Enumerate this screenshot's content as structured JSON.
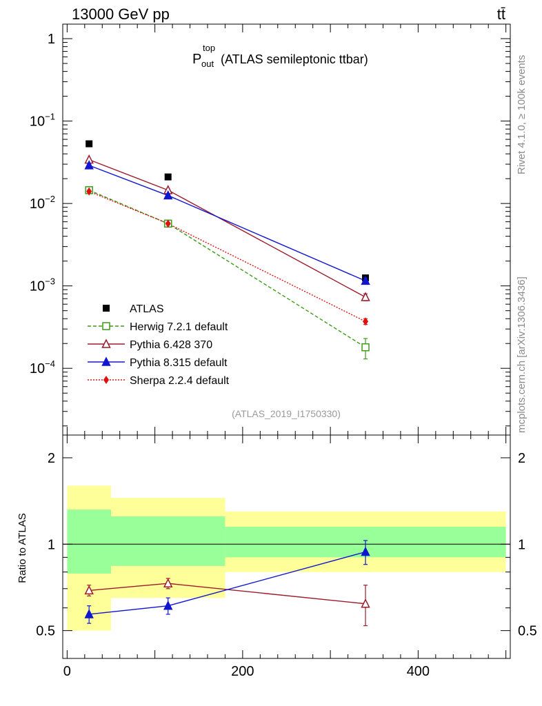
{
  "header": {
    "energy_label": "13000 GeV pp",
    "process_label": "tt̄"
  },
  "title": {
    "symbol": "P",
    "superscript": "top",
    "subscript": "out",
    "text": "(ATLAS semileptonic ttbar)"
  },
  "side_labels": {
    "rivet": "Rivet 4.1.0, ≥ 100k events",
    "mcplots": "mcplots.cern.ch [arXiv:1306.3436]"
  },
  "analysis_id": "(ATLAS_2019_I1750330)",
  "chart_data": [
    {
      "type": "scatter",
      "yscale": "log",
      "xlim": [
        -5,
        505
      ],
      "ylim": [
        1.55e-05,
        1.5
      ],
      "y_tick_labels": [
        "1",
        "10^-1",
        "10^-2",
        "10^-3",
        "10^-4"
      ],
      "legend_position": "lower-left",
      "series": [
        {
          "name": "ATLAS",
          "color": "#000000",
          "marker": "filled-square",
          "line": "none",
          "x": [
            25,
            115,
            340
          ],
          "y": [
            0.053,
            0.021,
            0.00125
          ],
          "yerr": [
            0.0015,
            0.0006,
            8e-05
          ]
        },
        {
          "name": "Herwig 7.2.1 default",
          "color": "#3a9a18",
          "marker": "open-square",
          "line": "dashed",
          "x": [
            25,
            115,
            340
          ],
          "y": [
            0.0145,
            0.0057,
            0.00018
          ],
          "yerr": [
            0.0004,
            0.00015,
            5e-05
          ]
        },
        {
          "name": "Pythia 6.428 370",
          "color": "#9b1b2b",
          "marker": "open-triangle",
          "line": "solid",
          "x": [
            25,
            115,
            340
          ],
          "y": [
            0.034,
            0.0145,
            0.00073
          ],
          "yerr": [
            0.0008,
            0.0004,
            7e-05
          ]
        },
        {
          "name": "Pythia 8.315 default",
          "color": "#1016d0",
          "marker": "filled-triangle",
          "line": "solid",
          "x": [
            25,
            115,
            340
          ],
          "y": [
            0.029,
            0.0125,
            0.00115
          ],
          "yerr": [
            0.0007,
            0.0003,
            0.0001
          ]
        },
        {
          "name": "Sherpa 2.2.4 default",
          "color": "#e01010",
          "marker": "filled-diamond",
          "line": "dotted",
          "x": [
            25,
            115,
            340
          ],
          "y": [
            0.014,
            0.0057,
            0.00037
          ],
          "yerr": [
            0.0003,
            0.00015,
            3e-05
          ]
        }
      ]
    },
    {
      "type": "scatter",
      "yscale": "log",
      "ylabel": "Ratio to ATLAS",
      "xlim": [
        -5,
        505
      ],
      "ylim": [
        0.4,
        2.4
      ],
      "x_ticks": [
        0,
        200,
        400
      ],
      "x_tick_labels": [
        "0",
        "200",
        "400"
      ],
      "y_ticks": [
        0.5,
        1,
        2
      ],
      "y_tick_labels": [
        "0.5",
        "1",
        "2"
      ],
      "bands": [
        {
          "x": [
            0,
            50
          ],
          "yellow": [
            0.5,
            1.6
          ],
          "green": [
            0.79,
            1.32
          ]
        },
        {
          "x": [
            50,
            180
          ],
          "yellow": [
            0.65,
            1.45
          ],
          "green": [
            0.84,
            1.25
          ]
        },
        {
          "x": [
            180,
            500
          ],
          "yellow": [
            0.8,
            1.3
          ],
          "green": [
            0.9,
            1.15
          ]
        }
      ],
      "series": [
        {
          "name": "Pythia 6.428 370",
          "color": "#9b1b2b",
          "marker": "open-triangle",
          "line": "solid",
          "x": [
            25,
            115,
            340
          ],
          "y": [
            0.69,
            0.73,
            0.62
          ],
          "yerr": [
            0.03,
            0.03,
            0.1
          ]
        },
        {
          "name": "Pythia 8.315 default",
          "color": "#1016d0",
          "marker": "filled-triangle",
          "line": "solid",
          "x": [
            25,
            115,
            340
          ],
          "y": [
            0.57,
            0.61,
            0.94
          ],
          "yerr": [
            0.04,
            0.04,
            0.09
          ]
        }
      ]
    }
  ]
}
